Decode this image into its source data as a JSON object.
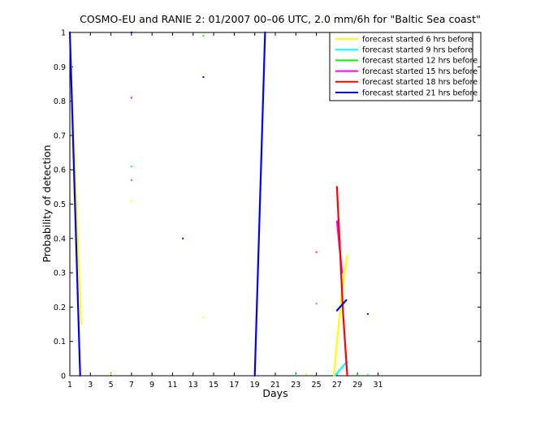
{
  "chart_data": {
    "type": "line",
    "title": "COSMO-EU and RANIE 2: 01/2007 00–06 UTC, 2.0 mm/6h for \"Baltic Sea coast\"",
    "xlabel": "Days",
    "ylabel": "Probability of detection",
    "xlim": [
      1,
      41
    ],
    "ylim": [
      0,
      1
    ],
    "xticks": [
      1,
      3,
      5,
      7,
      9,
      11,
      13,
      15,
      17,
      19,
      21,
      23,
      25,
      27,
      29,
      31
    ],
    "xtick_labels": [
      "1",
      "3",
      "5",
      "7",
      "9",
      "11",
      "13",
      "15",
      "17",
      "19",
      "21",
      "23",
      "25",
      "27",
      "29",
      "31"
    ],
    "yticks": [
      0,
      0.1,
      0.2,
      0.3,
      0.4,
      0.5,
      0.6,
      0.7,
      0.8,
      0.9,
      1
    ],
    "ytick_labels": [
      "0",
      "0.1",
      "0.2",
      "0.3",
      "0.4",
      "0.5",
      "0.6",
      "0.7",
      "0.8",
      "0.9",
      "1"
    ],
    "legend_position": "top-right",
    "grid": false,
    "series": [
      {
        "name": "forecast started 6 hrs before",
        "color": "#ffff00",
        "segments": [
          [
            [
              1.0,
              1.0
            ],
            [
              1.9,
              0.3
            ],
            [
              2.1,
              0.15
            ]
          ],
          [
            [
              26.7,
              0.0
            ],
            [
              27.5,
              0.25
            ],
            [
              28.0,
              0.35
            ]
          ]
        ],
        "points": [
          [
            7,
            0.51
          ],
          [
            14,
            0.17
          ],
          [
            5,
            0.005
          ],
          [
            24,
            0.005
          ]
        ]
      },
      {
        "name": "forecast started 9 hrs before",
        "color": "#00ffff",
        "segments": [
          [
            [
              26.8,
              0.0
            ],
            [
              27.8,
              0.035
            ],
            [
              28.0,
              0.04
            ]
          ]
        ],
        "points": [
          [
            7,
            0.61
          ],
          [
            23,
            0.003
          ],
          [
            30,
            0.003
          ]
        ]
      },
      {
        "name": "forecast started 12 hrs before",
        "color": "#00ff00",
        "segments": [],
        "points": [
          [
            7,
            0.57
          ],
          [
            14,
            0.99
          ],
          [
            25,
            0.21
          ],
          [
            29,
            0.003
          ]
        ]
      },
      {
        "name": "forecast started 15 hrs before",
        "color": "#ff00ff",
        "segments": [
          [
            [
              27.0,
              0.45
            ],
            [
              27.5,
              0.3
            ]
          ]
        ],
        "points": [
          [
            7,
            0.81
          ],
          [
            25,
            0.36
          ]
        ]
      },
      {
        "name": "forecast started 18 hrs before",
        "color": "#ff0000",
        "segments": [
          [
            [
              27.0,
              0.55
            ],
            [
              27.6,
              0.18
            ],
            [
              28.0,
              0.0
            ]
          ]
        ],
        "points": []
      },
      {
        "name": "forecast started 21 hrs before",
        "color": "#0000ff",
        "segments": [
          [
            [
              1.0,
              1.0
            ],
            [
              2.0,
              0.0
            ]
          ],
          [
            [
              19.0,
              0.0
            ],
            [
              20.0,
              1.0
            ]
          ],
          [
            [
              27.0,
              0.19
            ],
            [
              27.9,
              0.22
            ]
          ]
        ],
        "points": [
          [
            7,
            1.0
          ],
          [
            12,
            0.4
          ],
          [
            14,
            0.87
          ],
          [
            30,
            0.18
          ]
        ]
      }
    ]
  }
}
